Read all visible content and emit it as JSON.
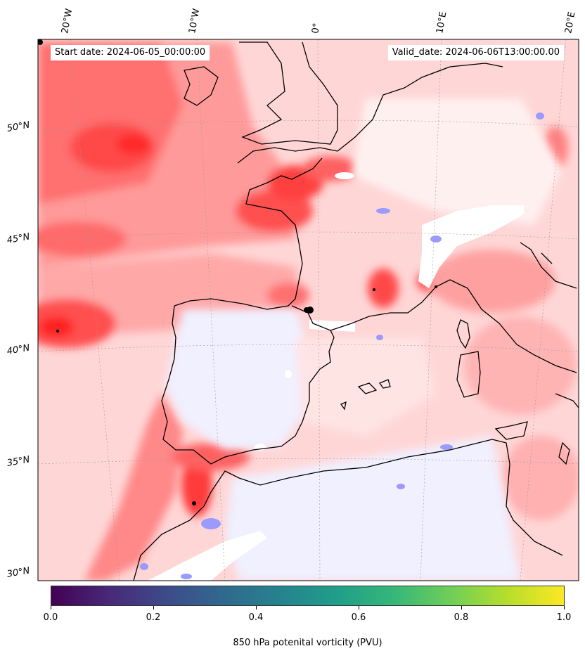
{
  "header": {
    "start_date": "Start date: 2024-06-05_00:00:00",
    "valid_date": "Valid_date: 2024-06-06T13:00:00.00"
  },
  "map": {
    "longitude_labels": [
      "20°W",
      "10°W",
      "0°",
      "10°E",
      "20°E"
    ],
    "latitude_labels": [
      "50°N",
      "45°N",
      "40°N",
      "35°N",
      "30°N"
    ],
    "field_colors": {
      "background": "#ffd6d6",
      "strong": "#ff3a3a",
      "medium": "#ff7a7a",
      "weak": "#ffb0b0",
      "faint": "#ffe6e6",
      "neg": "#eeeeff",
      "neg_strong": "#8a8aff",
      "coast": "#000000"
    }
  },
  "colorbar": {
    "colormap": "viridis",
    "ticks": [
      "0.0",
      "0.2",
      "0.4",
      "0.6",
      "0.8",
      "1.0"
    ],
    "label": "850 hPa potenital vorticity (PVU)"
  }
}
